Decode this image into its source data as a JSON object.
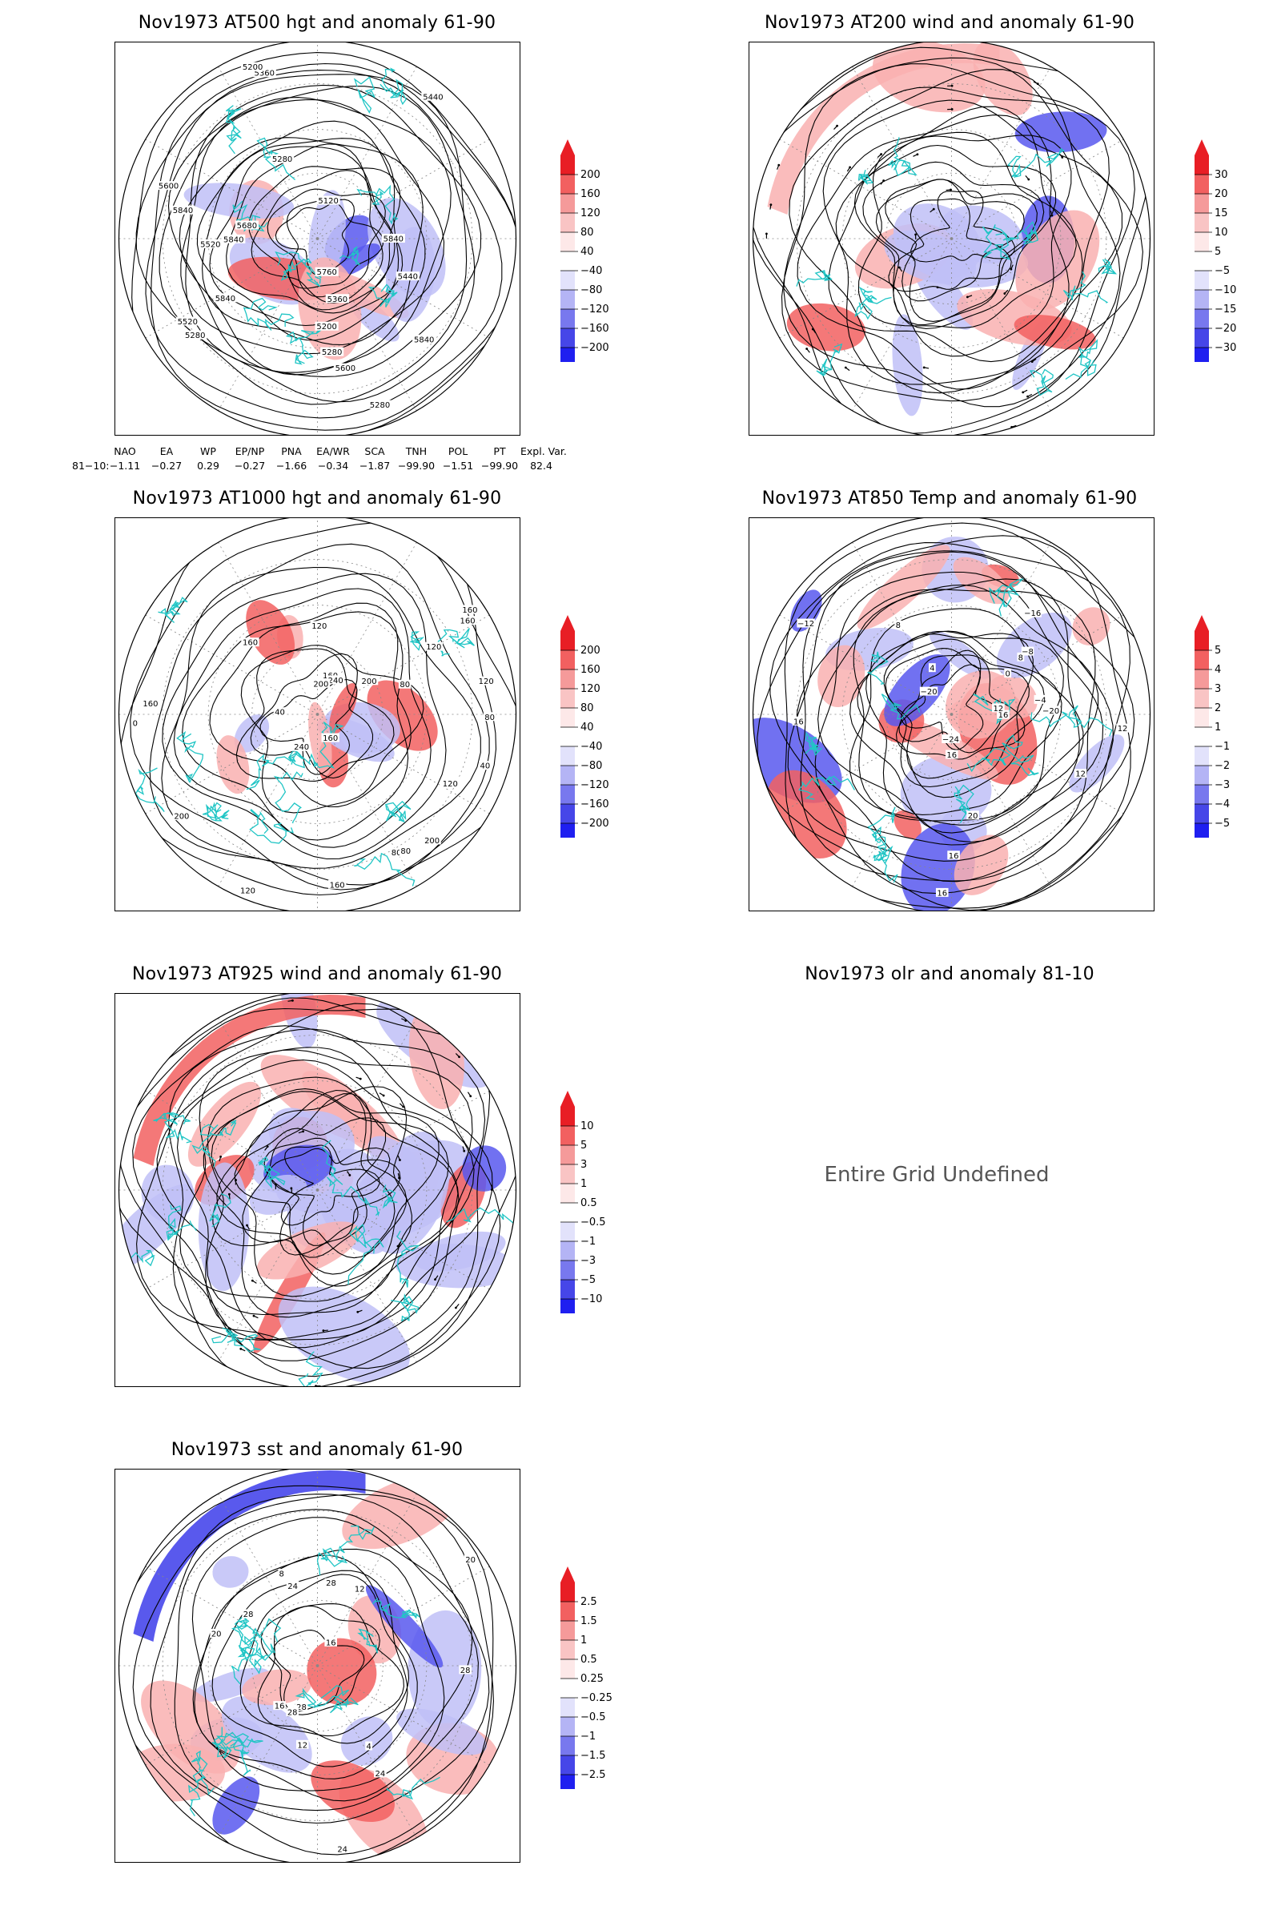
{
  "panels": [
    {
      "id": "p1",
      "title": "Nov1973 AT500 hgt and anomaly 61-90",
      "colorbar": [
        "200",
        "160",
        "120",
        "80",
        "40",
        "−40",
        "−80",
        "−120",
        "−160",
        "−200"
      ],
      "contour_labels": [
        "5840",
        "5840",
        "5600",
        "5520",
        "5440",
        "5360",
        "5280",
        "5200",
        "5280",
        "5280",
        "5840",
        "5120",
        "5200",
        "5280",
        "5360",
        "5440",
        "5520",
        "5600",
        "5680",
        "5760",
        "5840",
        "5840"
      ]
    },
    {
      "id": "p2",
      "title": "Nov1973 AT200 wind and anomaly 61-90",
      "colorbar": [
        "30",
        "20",
        "15",
        "10",
        "5",
        "−5",
        "−10",
        "−15",
        "−20",
        "−30"
      ]
    },
    {
      "id": "p3",
      "title": "Nov1973 AT1000 hgt and anomaly 61-90",
      "colorbar": [
        "200",
        "160",
        "120",
        "80",
        "40",
        "−40",
        "−80",
        "−120",
        "−160",
        "−200"
      ],
      "contour_labels": [
        "80",
        "120",
        "160",
        "160",
        "120",
        "80",
        "40",
        "0",
        "160",
        "200",
        "240",
        "200",
        "80",
        "120",
        "160",
        "80",
        "40",
        "160",
        "240",
        "200",
        "120",
        "160",
        "200",
        "120",
        "160"
      ]
    },
    {
      "id": "p4",
      "title": "Nov1973 AT850 Temp and anomaly 61-90",
      "colorbar": [
        "5",
        "4",
        "3",
        "2",
        "1",
        "−1",
        "−2",
        "−3",
        "−4",
        "−5"
      ],
      "contour_labels": [
        "16",
        "12",
        "12",
        "8",
        "4",
        "0",
        "−4",
        "−8",
        "−12",
        "−16",
        "−20",
        "−24",
        "−20",
        "16",
        "16",
        "8",
        "12",
        "16",
        "20",
        "16"
      ]
    },
    {
      "id": "p5",
      "title": "Nov1973 AT925 wind and anomaly 61-90",
      "colorbar": [
        "10",
        "5",
        "3",
        "1",
        "0.5",
        "−0.5",
        "−1",
        "−3",
        "−5",
        "−10"
      ]
    },
    {
      "id": "p6",
      "title": "Nov1973 olr and anomaly 81-10",
      "message": "Entire Grid Undefined"
    },
    {
      "id": "p7",
      "title": "Nov1973 sst and anomaly 61-90",
      "colorbar": [
        "2.5",
        "1.5",
        "1",
        "0.5",
        "0.25",
        "−0.25",
        "−0.5",
        "−1",
        "−1.5",
        "−2.5"
      ],
      "contour_labels": [
        "28",
        "24",
        "28",
        "24",
        "20",
        "16",
        "12",
        "8",
        "4",
        "28",
        "28",
        "24",
        "20",
        "16",
        "12",
        "28"
      ]
    }
  ],
  "teleconnection": {
    "headers": [
      "NAO",
      "EA",
      "WP",
      "EP/NP",
      "PNA",
      "EA/WR",
      "SCA",
      "TNH",
      "POL",
      "PT",
      "Expl. Var."
    ],
    "row_label": "81−10:",
    "values": [
      "−1.11",
      "−0.27",
      "0.29",
      "−0.27",
      "−1.66",
      "−0.34",
      "−1.87",
      "−99.90",
      "−1.51",
      "−99.90",
      "82.4"
    ]
  },
  "colors": {
    "coast": "#20c5c5",
    "red_strong": "#e8202a",
    "blue_strong": "#2a2ae8",
    "contour": "#000000"
  }
}
